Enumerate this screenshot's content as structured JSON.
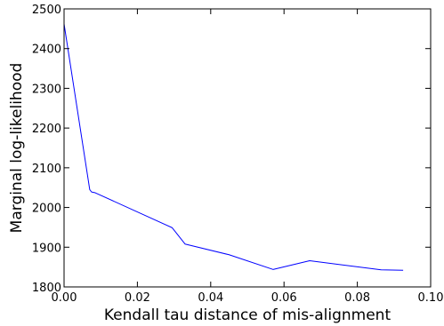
{
  "chart_data": {
    "type": "line",
    "title": "",
    "xlabel": "Kendall tau distance of mis-alignment",
    "ylabel": "Marginal log-likelihood",
    "xlim": [
      0.0,
      0.1
    ],
    "ylim": [
      1800,
      2500
    ],
    "xticks": [
      0.0,
      0.02,
      0.04,
      0.06,
      0.08,
      0.1
    ],
    "xtick_labels": [
      "0.00",
      "0.02",
      "0.04",
      "0.06",
      "0.08",
      "0.10"
    ],
    "yticks": [
      1800,
      1900,
      2000,
      2100,
      2200,
      2300,
      2400,
      2500
    ],
    "ytick_labels": [
      "1800",
      "1900",
      "2000",
      "2100",
      "2200",
      "2300",
      "2400",
      "2500"
    ],
    "grid": false,
    "legend": "none",
    "series": [
      {
        "color": "#0000ff",
        "x": [
          0.0,
          0.007,
          0.0075,
          0.0085,
          0.0295,
          0.033,
          0.045,
          0.057,
          0.067,
          0.0865,
          0.0925
        ],
        "y": [
          2462,
          2045,
          2039,
          2037,
          1949,
          1908,
          1881,
          1844,
          1866,
          1843,
          1842
        ]
      }
    ]
  }
}
